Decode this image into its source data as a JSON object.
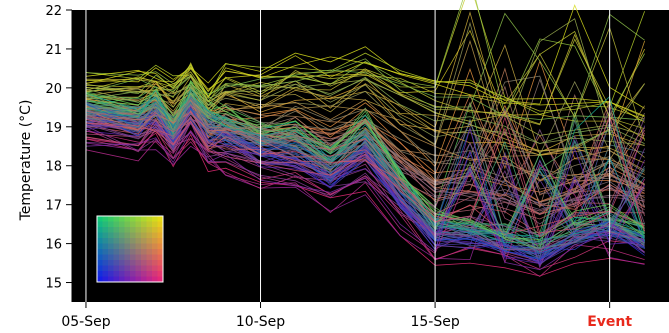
{
  "chart_data": {
    "type": "line",
    "title": "",
    "xlabel": "",
    "ylabel": "Temperature (°C)",
    "ylim": [
      14.5,
      22
    ],
    "x_range_days": [
      -0.2,
      10.2
    ],
    "yticks": [
      15,
      16,
      17,
      18,
      19,
      20,
      21,
      22
    ],
    "xticks": [
      {
        "label": "05-Sep",
        "day": 0
      },
      {
        "label": "10-Sep",
        "day": 5
      },
      {
        "label": "15-Sep",
        "day": 10
      },
      {
        "label": "Event",
        "day": 15
      }
    ],
    "event_color": "#e8291c",
    "background_color": "#000000",
    "vertical_lines_color": "#ffffff",
    "legend": "color-square-bottom-left",
    "grid": false,
    "series_note": "Ensemble of ~150 temperature traces per location, colored by 2D position key",
    "representative_series": [
      {
        "x": [
          0,
          1.5,
          2,
          2.5,
          3,
          3.5,
          4,
          5,
          6,
          7,
          8,
          9,
          10,
          11,
          12,
          13,
          14,
          15,
          16
        ],
        "y": [
          20.3,
          20.3,
          20.4,
          20.2,
          20.6,
          20.0,
          20.5,
          20.4,
          20.8,
          20.6,
          20.9,
          20.5,
          20.2,
          20.1,
          19.9,
          19.6,
          19.7,
          19.8,
          19.4
        ]
      },
      {
        "x": [
          0,
          1.5,
          2,
          2.5,
          3,
          3.5,
          4,
          5,
          6,
          7,
          8,
          9,
          10,
          11,
          12,
          13,
          14,
          15,
          16
        ],
        "y": [
          19.8,
          19.6,
          19.9,
          19.1,
          20.0,
          19.6,
          19.4,
          19.0,
          19.1,
          18.4,
          19.3,
          17.9,
          16.8,
          16.5,
          16.4,
          16.2,
          16.6,
          16.8,
          16.4
        ]
      },
      {
        "x": [
          0,
          1.5,
          2,
          2.5,
          3,
          3.5,
          4,
          5,
          6,
          7,
          8,
          9,
          10,
          11,
          12,
          13,
          14,
          15,
          16
        ],
        "y": [
          19.0,
          18.8,
          19.1,
          18.4,
          19.3,
          18.5,
          18.3,
          18.0,
          17.9,
          17.2,
          17.8,
          16.8,
          15.8,
          15.9,
          15.6,
          15.4,
          15.8,
          16.2,
          15.9
        ]
      },
      {
        "x": [
          0,
          1.5,
          2,
          2.5,
          3,
          3.5,
          4,
          5,
          6,
          7,
          8,
          9,
          10,
          11,
          12,
          13,
          14,
          15,
          16
        ],
        "y": [
          20.1,
          20.0,
          20.3,
          19.7,
          20.3,
          19.9,
          19.8,
          19.6,
          19.7,
          19.3,
          20.2,
          18.6,
          17.7,
          17.3,
          17.2,
          17.0,
          17.4,
          17.6,
          17.3
        ]
      },
      {
        "x": [
          0,
          1.5,
          2,
          2.5,
          3,
          3.5,
          4,
          5,
          6,
          7,
          8,
          9,
          10,
          11,
          12,
          13,
          14,
          15,
          16
        ],
        "y": [
          18.6,
          18.3,
          18.6,
          18.1,
          18.7,
          18.0,
          17.9,
          17.5,
          17.3,
          16.9,
          17.3,
          16.3,
          15.4,
          15.6,
          15.3,
          15.1,
          15.5,
          15.8,
          15.4
        ]
      }
    ]
  }
}
